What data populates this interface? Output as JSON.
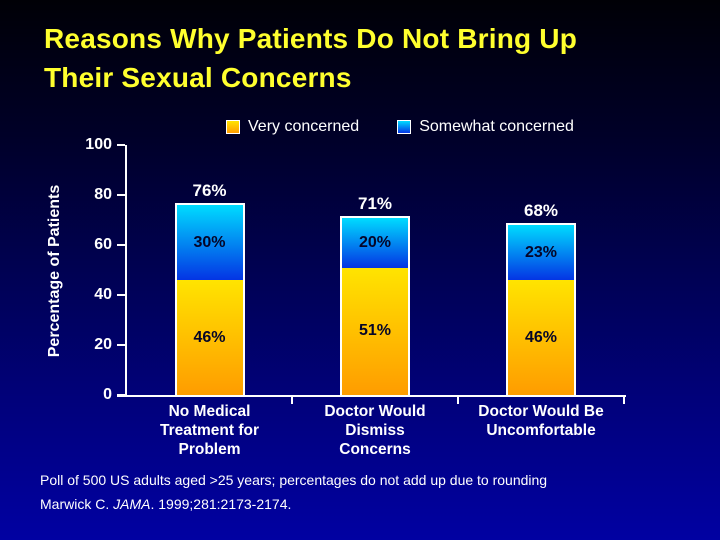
{
  "slide": {
    "title": "Reasons Why Patients Do Not Bring Up\nTheir Sexual Concerns",
    "footnote": "Poll of 500 US adults aged >25 years; percentages do not add up due to rounding",
    "citation": {
      "prefix": "Marwick C. ",
      "journal_italic": "JAMA",
      "suffix": ". 1999;281:2173-2174."
    }
  },
  "colors": {
    "background_top": "#000006",
    "background_bottom": "#0101a2",
    "title_text": "#ffff2e",
    "axis_text": "#ffffff",
    "segment_label_text": "#050528",
    "bar_border": "#ffffff"
  },
  "chart_data": {
    "type": "bar",
    "stacked": true,
    "title": "",
    "xlabel": "",
    "ylabel": "Percentage of Patients",
    "ylim": [
      0,
      100
    ],
    "yticks": [
      0,
      20,
      40,
      60,
      80,
      100
    ],
    "grid": false,
    "legend_position": "top",
    "categories": [
      "No Medical\nTreatment for\nProblem",
      "Doctor Would\nDismiss\nConcerns",
      "Doctor Would Be\nUncomfortable"
    ],
    "series": [
      {
        "name": "Very concerned",
        "values": [
          46,
          51,
          46
        ],
        "labels": [
          "46%",
          "51%",
          "46%"
        ],
        "color_top": "#ffe400",
        "color_bottom": "#ff9c00"
      },
      {
        "name": "Somewhat concerned",
        "values": [
          30,
          20,
          23
        ],
        "labels": [
          "30%",
          "20%",
          "23%"
        ],
        "color_top": "#00dcff",
        "color_bottom": "#0434e4"
      }
    ],
    "totals": [
      76,
      71,
      68
    ],
    "total_labels": [
      "76%",
      "71%",
      "68%"
    ]
  }
}
